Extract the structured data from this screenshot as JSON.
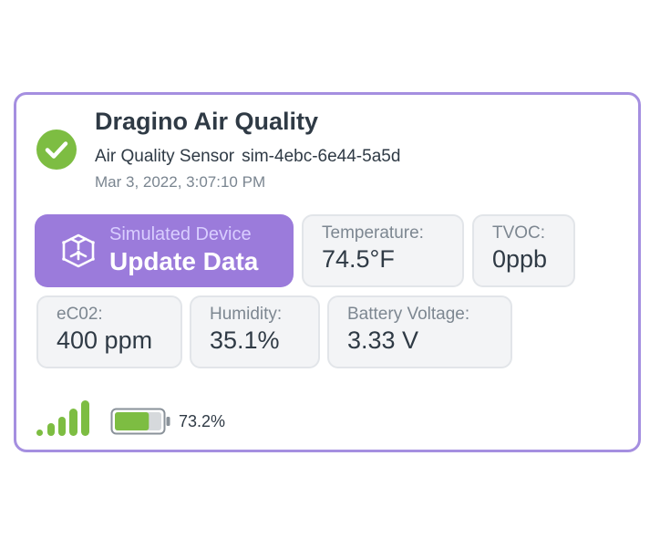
{
  "device": {
    "name": "Dragino Air Quality",
    "type": "Air Quality Sensor",
    "sim_id": "sim-4ebc-6e44-5a5d",
    "timestamp": "Mar 3, 2022, 3:07:10 PM",
    "status_icon": "check-circle-icon",
    "status_color": "#7dbd42"
  },
  "simulate": {
    "label": "Simulated Device",
    "action": "Update Data",
    "icon": "cube-icon",
    "color": "#9b7bdb"
  },
  "readings": [
    {
      "label": "Temperature:",
      "value": "74.5°F"
    },
    {
      "label": "TVOC:",
      "value": "0ppb"
    },
    {
      "label": "eC02:",
      "value": "400 ppm"
    },
    {
      "label": "Humidity:",
      "value": "35.1%"
    },
    {
      "label": "Battery Voltage:",
      "value": "3.33 V"
    }
  ],
  "footer": {
    "signal_icon": "signal-bars-icon",
    "signal_bars": 5,
    "battery_icon": "battery-icon",
    "battery_level": 0.732,
    "battery_text": "73.2%",
    "accent_color": "#7dbd42"
  }
}
